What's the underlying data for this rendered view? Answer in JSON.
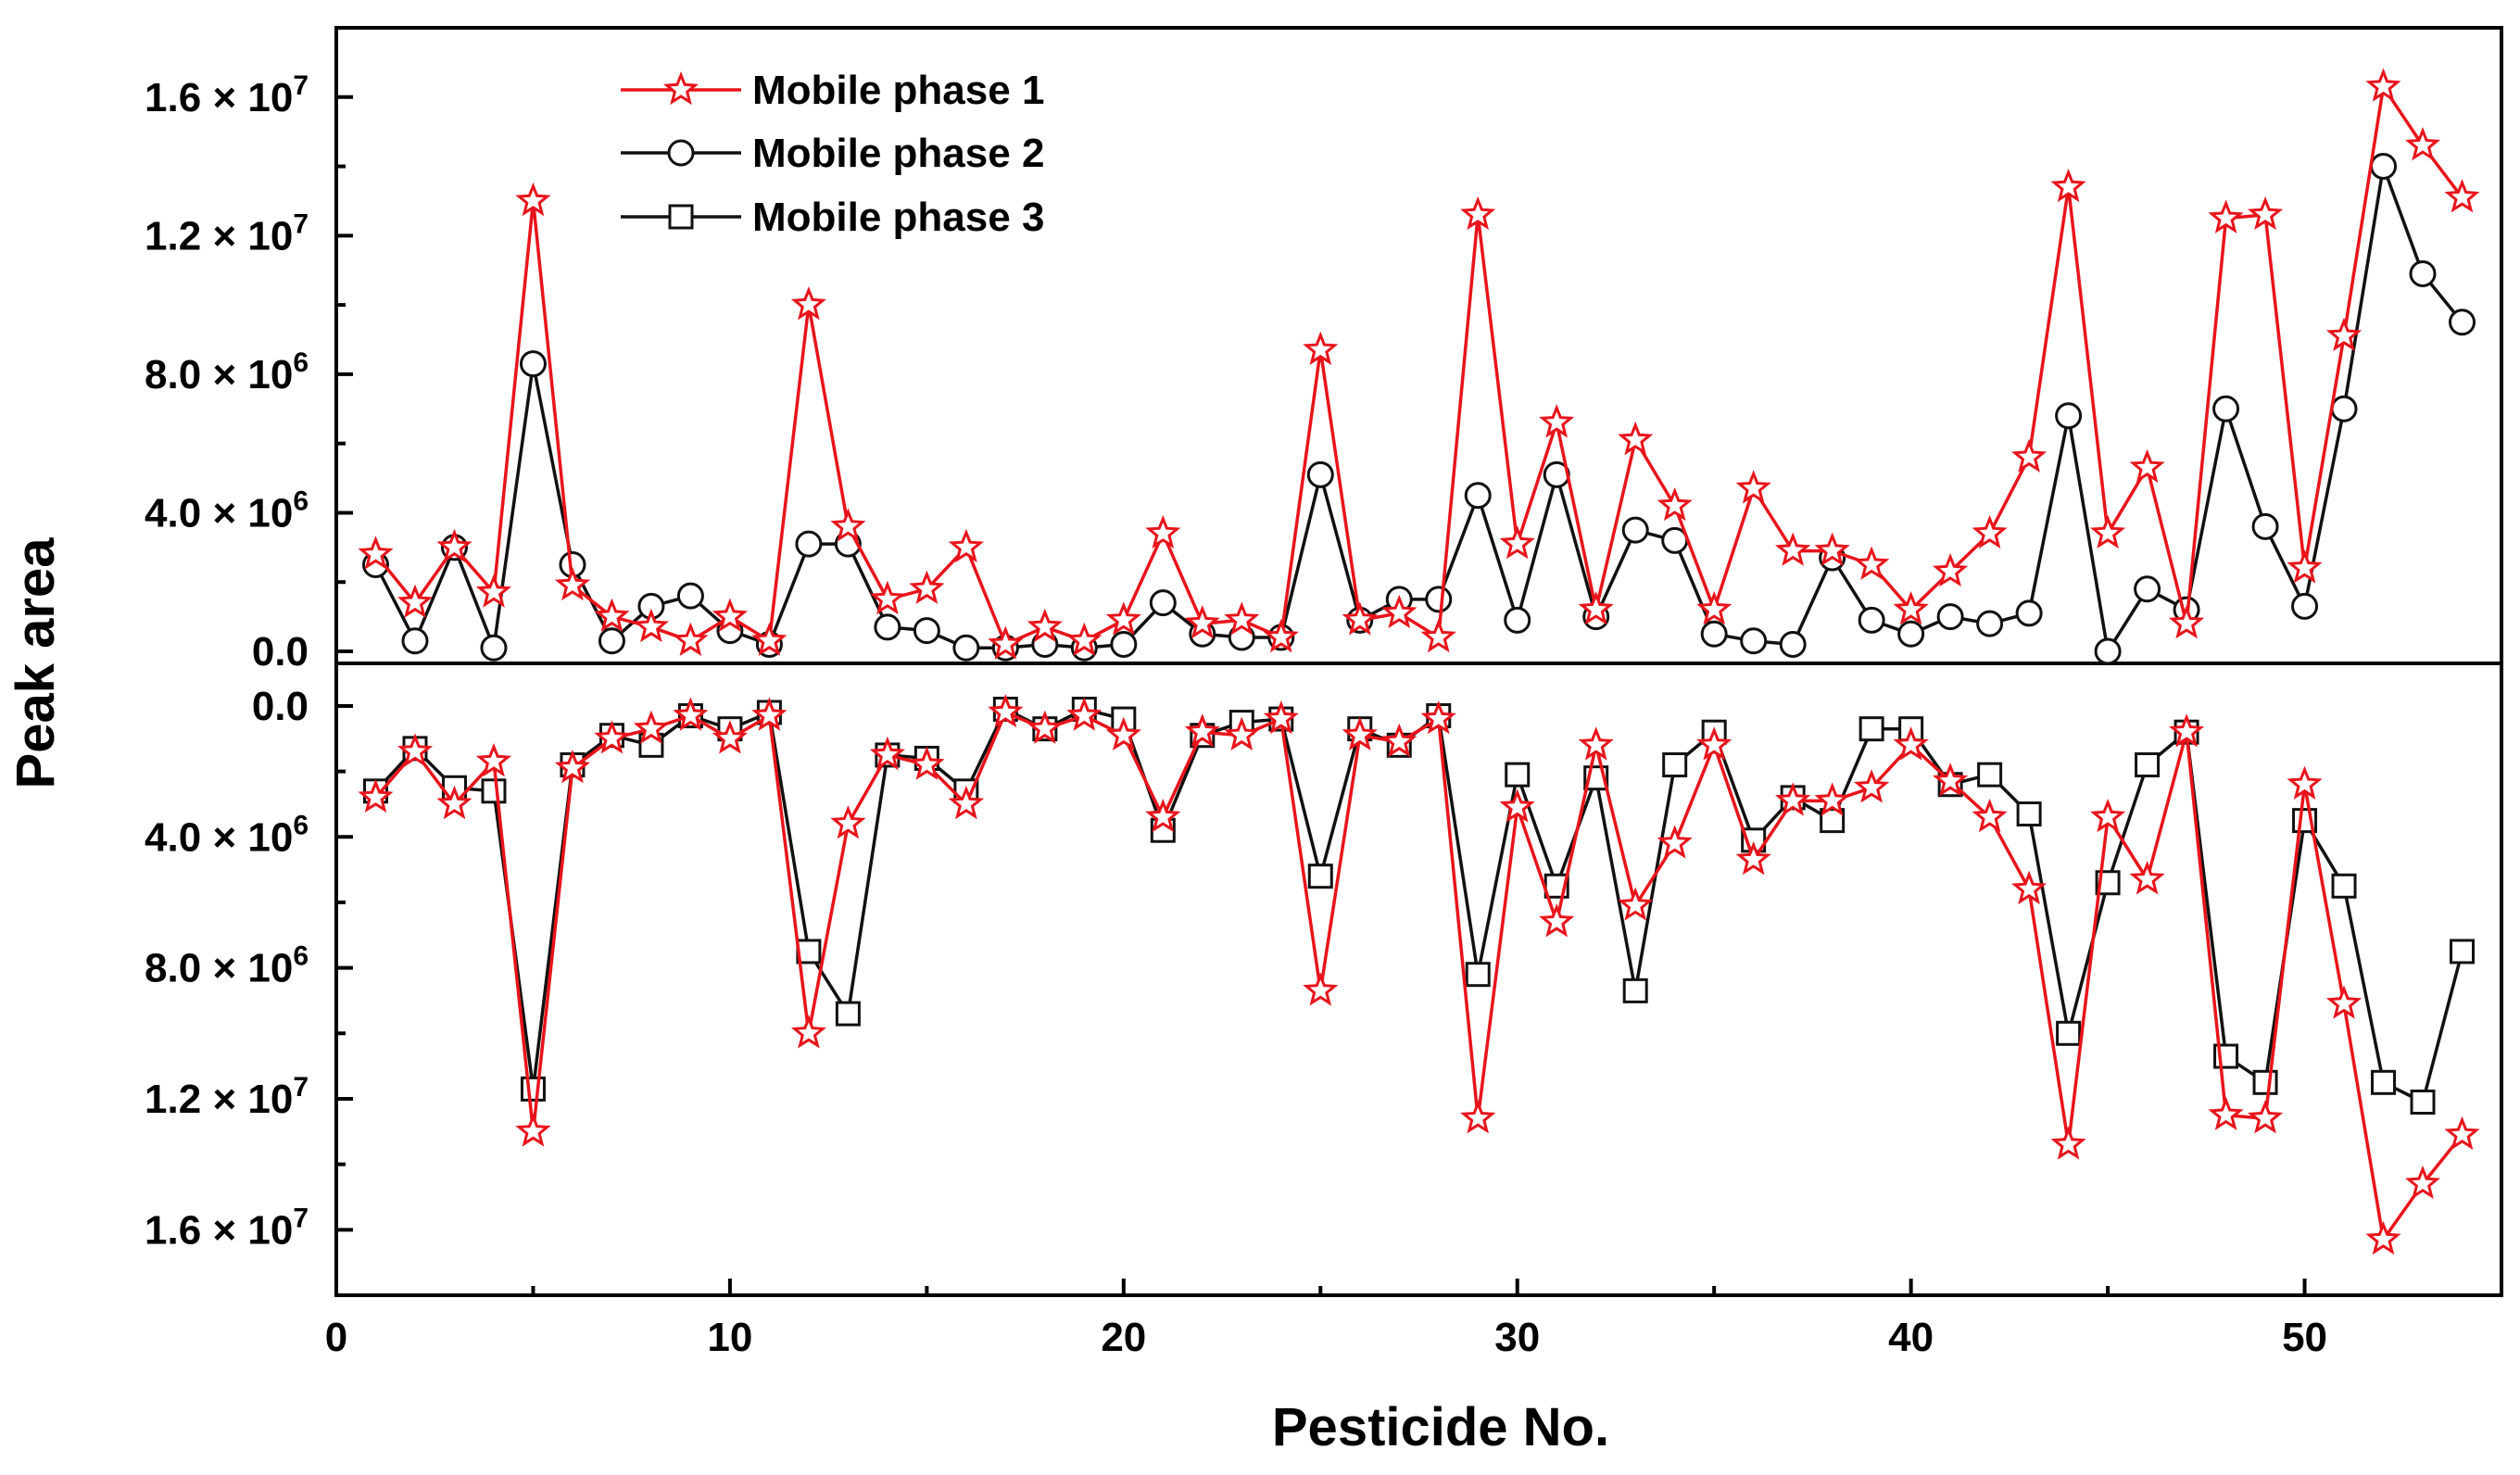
{
  "chart_data": {
    "type": "line",
    "xlabel": "Pesticide No.",
    "ylabel": "Peak area",
    "xlim": [
      0,
      55
    ],
    "x_ticks": [
      "0",
      "10",
      "20",
      "30",
      "40",
      "50"
    ],
    "top_panel": {
      "ylim": [
        0,
        18000000
      ],
      "y_ticks": [
        {
          "mant": "0.0",
          "exp": ""
        },
        {
          "mant": "4.0 × 10",
          "exp": "6"
        },
        {
          "mant": "8.0 × 10",
          "exp": "6"
        },
        {
          "mant": "1.2 × 10",
          "exp": "7"
        },
        {
          "mant": "1.6 × 10",
          "exp": "7"
        }
      ]
    },
    "bottom_panel": {
      "ylim": [
        18000000,
        -1300000
      ],
      "y_ticks": [
        {
          "mant": "0.0",
          "exp": ""
        },
        {
          "mant": "4.0 × 10",
          "exp": "6"
        },
        {
          "mant": "8.0 × 10",
          "exp": "6"
        },
        {
          "mant": "1.2 × 10",
          "exp": "7"
        },
        {
          "mant": "1.6 × 10",
          "exp": "7"
        }
      ]
    },
    "legend": {
      "position": "top-left",
      "entries": [
        "Mobile phase 1",
        "Mobile phase 2",
        "Mobile phase 3"
      ]
    },
    "x": [
      1,
      2,
      3,
      4,
      5,
      6,
      7,
      8,
      9,
      10,
      11,
      12,
      13,
      14,
      15,
      16,
      17,
      18,
      19,
      20,
      21,
      22,
      23,
      24,
      25,
      26,
      27,
      28,
      29,
      30,
      31,
      32,
      33,
      34,
      35,
      36,
      37,
      38,
      39,
      40,
      41,
      42,
      43,
      44,
      45,
      46,
      47,
      48,
      49,
      50,
      51,
      52,
      53,
      54
    ],
    "series": [
      {
        "name": "Mobile phase 1",
        "color": "#e8141b",
        "marker": "star",
        "values": [
          2800000,
          1400000,
          3000000,
          1700000,
          13000000,
          1900000,
          1000000,
          700000,
          300000,
          1000000,
          300000,
          10000000,
          3600000,
          1500000,
          1800000,
          3000000,
          200000,
          700000,
          300000,
          900000,
          3400000,
          800000,
          900000,
          400000,
          8700000,
          900000,
          1100000,
          400000,
          12600000,
          3100000,
          6600000,
          1200000,
          6100000,
          4200000,
          1200000,
          4700000,
          2900000,
          2900000,
          2500000,
          1200000,
          2300000,
          3400000,
          5600000,
          13400000,
          3400000,
          5300000,
          800000,
          12500000,
          12600000,
          2400000,
          9100000,
          16300000,
          14600000,
          13100000
        ]
      },
      {
        "name": "Mobile phase 2",
        "color": "#111111",
        "marker": "circle",
        "values": [
          2500000,
          300000,
          3000000,
          100000,
          8300000,
          2500000,
          300000,
          1300000,
          1600000,
          600000,
          200000,
          3100000,
          3100000,
          700000,
          600000,
          100000,
          100000,
          200000,
          100000,
          200000,
          1400000,
          500000,
          400000,
          400000,
          5100000,
          900000,
          1500000,
          1500000,
          4500000,
          900000,
          5100000,
          1000000,
          3500000,
          3200000,
          500000,
          300000,
          200000,
          2700000,
          900000,
          500000,
          1000000,
          800000,
          1100000,
          6800000,
          0,
          1800000,
          1200000,
          7000000,
          3600000,
          1300000,
          7000000,
          14000000,
          10900000,
          9500000
        ]
      },
      {
        "name": "Mobile phase 3",
        "color": "#111111",
        "marker": "square",
        "values": [
          2600000,
          1300000,
          2500000,
          2600000,
          11700000,
          1800000,
          900000,
          1200000,
          300000,
          700000,
          200000,
          7500000,
          9400000,
          1500000,
          1600000,
          2600000,
          100000,
          700000,
          100000,
          400000,
          3800000,
          900000,
          500000,
          400000,
          5200000,
          700000,
          1200000,
          300000,
          8200000,
          2100000,
          5500000,
          2200000,
          8700000,
          1800000,
          800000,
          4100000,
          2800000,
          3500000,
          700000,
          700000,
          2400000,
          2100000,
          3300000,
          10000000,
          5400000,
          1800000,
          800000,
          10700000,
          11500000,
          3500000,
          5500000,
          11500000,
          12100000,
          7500000
        ]
      }
    ]
  }
}
